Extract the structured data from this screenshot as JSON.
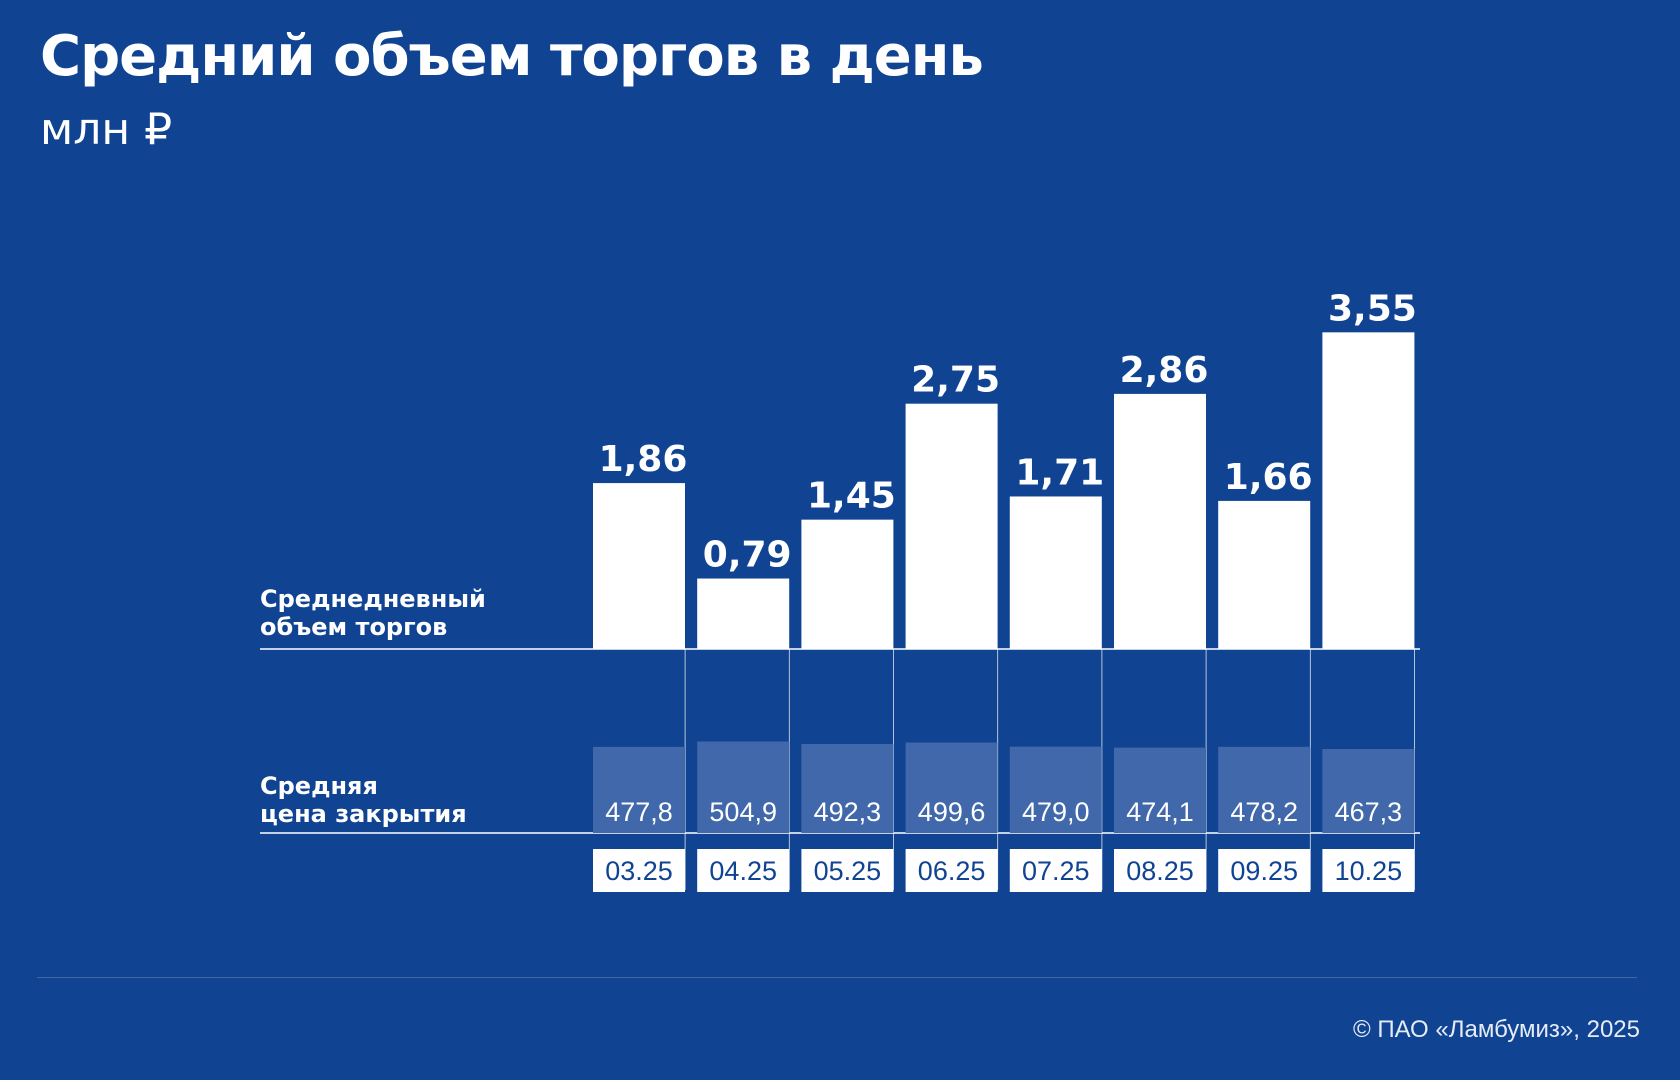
{
  "header": {
    "title": "Средний объем торгов в день",
    "subtitle": "млн ₽"
  },
  "labels": {
    "volume_line1": "Среднедневный",
    "volume_line2": "объем торгов",
    "price_line1": "Средняя",
    "price_line2": "цена закрытия"
  },
  "footer": {
    "copyright": "© ПАО «Ламбумиз», 2025"
  },
  "colors": {
    "background": "#104493",
    "bar": "#ffffff",
    "price_block": "#4168aa",
    "date_text": "#104493"
  },
  "chart_data": {
    "type": "bar",
    "categories": [
      "03.25",
      "04.25",
      "05.25",
      "06.25",
      "07.25",
      "08.25",
      "09.25",
      "10.25"
    ],
    "series": [
      {
        "name": "Среднедневный объем торгов",
        "values": [
          1.86,
          0.79,
          1.45,
          2.75,
          1.71,
          2.86,
          1.66,
          3.55
        ],
        "labels": [
          "1,86",
          "0,79",
          "1,45",
          "2,75",
          "1,71",
          "2,86",
          "1,66",
          "3,55"
        ]
      },
      {
        "name": "Средняя цена закрытия",
        "values": [
          477.8,
          504.9,
          492.3,
          499.6,
          479.0,
          474.1,
          478.2,
          467.3
        ],
        "labels": [
          "477,8",
          "504,9",
          "492,3",
          "499,6",
          "479,0",
          "474,1",
          "478,2",
          "467,3"
        ]
      }
    ],
    "title": "Средний объем торгов в день",
    "ylabel": "млн ₽",
    "ylim": [
      0,
      3.55
    ],
    "grid": false,
    "legend": "none"
  }
}
